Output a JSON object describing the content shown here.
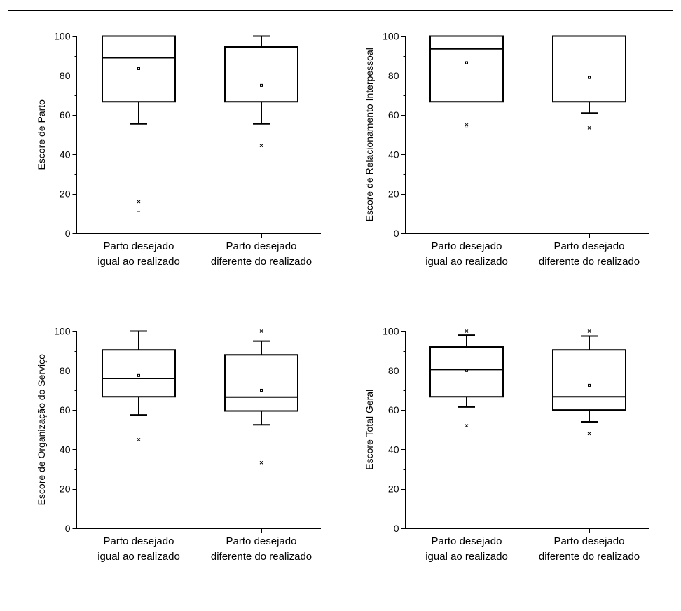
{
  "chart_data": [
    {
      "type": "box",
      "ylabel": "Escore de Parto",
      "ylim": [
        0,
        100
      ],
      "yticks": [
        0,
        20,
        40,
        60,
        80,
        100
      ],
      "categories": [
        [
          "Parto desejado",
          "igual ao realizado"
        ],
        [
          "Parto desejado",
          "diferente do realizado"
        ]
      ],
      "boxes": [
        {
          "whisker_low": 55.5,
          "q1": 66.7,
          "median": 89,
          "q3": 100,
          "whisker_high": 100,
          "mean": 83.5,
          "outliers": [
            {
              "value": 16,
              "marker": "x"
            },
            {
              "value": 11,
              "marker": "-"
            },
            {
              "value": 100,
              "marker": "-"
            }
          ]
        },
        {
          "whisker_low": 55.5,
          "q1": 66.7,
          "median": 94.5,
          "q3": 94.5,
          "whisker_high": 100,
          "mean": 75,
          "outliers": [
            {
              "value": 44.5,
              "marker": "x"
            },
            {
              "value": 100,
              "marker": "-"
            }
          ]
        }
      ]
    },
    {
      "type": "box",
      "ylabel": "Escore de Relacionamento Interpessoal",
      "ylim": [
        0,
        100
      ],
      "yticks": [
        0,
        20,
        40,
        60,
        80,
        100
      ],
      "categories": [
        [
          "Parto desejado",
          "igual ao realizado"
        ],
        [
          "Parto desejado",
          "diferente do realizado"
        ]
      ],
      "boxes": [
        {
          "whisker_low": 66.7,
          "q1": 66.7,
          "median": 93.5,
          "q3": 100,
          "whisker_high": 100,
          "mean": 86.5,
          "outliers": [
            {
              "value": 55,
              "marker": "x"
            },
            {
              "value": 53.5,
              "marker": "-"
            },
            {
              "value": 100,
              "marker": "-"
            }
          ]
        },
        {
          "whisker_low": 61,
          "q1": 66.7,
          "median": 100,
          "q3": 100,
          "whisker_high": 100,
          "mean": 79,
          "outliers": [
            {
              "value": 53.5,
              "marker": "x"
            },
            {
              "value": 100,
              "marker": "-"
            }
          ]
        }
      ]
    },
    {
      "type": "box",
      "ylabel": "Escore de Organização do Serviço",
      "ylim": [
        0,
        100
      ],
      "yticks": [
        0,
        20,
        40,
        60,
        80,
        100
      ],
      "categories": [
        [
          "Parto desejado",
          "igual ao realizado"
        ],
        [
          "Parto desejado",
          "diferente do realizado"
        ]
      ],
      "boxes": [
        {
          "whisker_low": 57.5,
          "q1": 66.7,
          "median": 76,
          "q3": 90.5,
          "whisker_high": 100,
          "mean": 77.5,
          "outliers": [
            {
              "value": 45,
              "marker": "x"
            },
            {
              "value": 100,
              "marker": "-"
            }
          ]
        },
        {
          "whisker_low": 52.5,
          "q1": 59.5,
          "median": 66.5,
          "q3": 88,
          "whisker_high": 95,
          "mean": 70,
          "outliers": [
            {
              "value": 100,
              "marker": "x"
            },
            {
              "value": 33.3,
              "marker": "x"
            }
          ]
        }
      ]
    },
    {
      "type": "box",
      "ylabel": "Escore Total Geral",
      "ylim": [
        0,
        100
      ],
      "yticks": [
        0,
        20,
        40,
        60,
        80,
        100
      ],
      "categories": [
        [
          "Parto desejado",
          "igual ao realizado"
        ],
        [
          "Parto desejado",
          "diferente do realizado"
        ]
      ],
      "boxes": [
        {
          "whisker_low": 61.5,
          "q1": 66.7,
          "median": 80.5,
          "q3": 92,
          "whisker_high": 98,
          "mean": 80,
          "outliers": [
            {
              "value": 100,
              "marker": "x"
            },
            {
              "value": 52,
              "marker": "x"
            }
          ]
        },
        {
          "whisker_low": 54,
          "q1": 60,
          "median": 66.7,
          "q3": 90.5,
          "whisker_high": 97.5,
          "mean": 72.5,
          "outliers": [
            {
              "value": 100,
              "marker": "x"
            },
            {
              "value": 48,
              "marker": "x"
            }
          ]
        }
      ]
    }
  ]
}
